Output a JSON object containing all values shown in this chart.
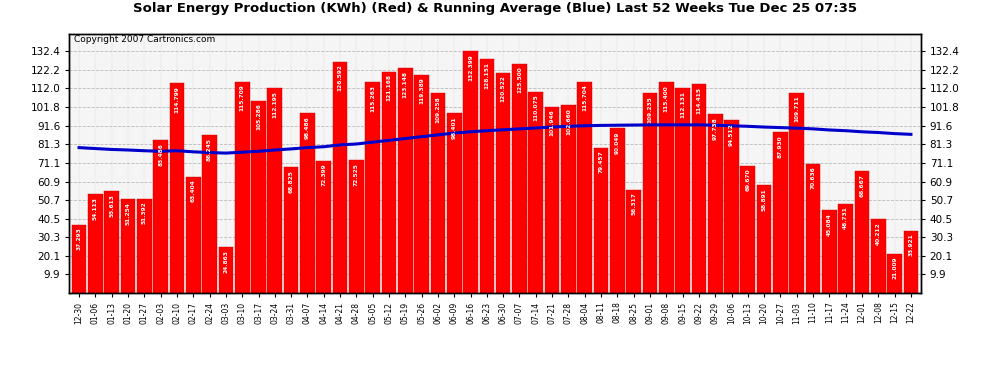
{
  "title": "Solar Energy Production (KWh) (Red) & Running Average (Blue) Last 52 Weeks Tue Dec 25 07:35",
  "copyright": "Copyright 2007 Cartronics.com",
  "bar_color": "#ff0000",
  "avg_color": "#0000cc",
  "background_color": "#ffffff",
  "plot_bg_color": "#ffffff",
  "grid_color": "#bbbbbb",
  "yticks": [
    9.9,
    20.1,
    30.3,
    40.5,
    50.7,
    60.9,
    71.1,
    81.3,
    91.6,
    101.8,
    112.0,
    122.2,
    132.4
  ],
  "categories": [
    "12-30",
    "01-06",
    "01-13",
    "01-20",
    "01-27",
    "02-03",
    "02-10",
    "02-17",
    "02-24",
    "03-03",
    "03-10",
    "03-17",
    "03-24",
    "03-31",
    "04-07",
    "04-14",
    "04-21",
    "04-28",
    "05-05",
    "05-12",
    "05-19",
    "05-26",
    "06-02",
    "06-09",
    "06-16",
    "06-23",
    "06-30",
    "07-07",
    "07-14",
    "07-21",
    "07-28",
    "08-04",
    "08-11",
    "08-18",
    "08-25",
    "09-01",
    "09-08",
    "09-15",
    "09-22",
    "09-29",
    "10-06",
    "10-13",
    "10-20",
    "10-27",
    "11-03",
    "11-10",
    "11-17",
    "11-24",
    "12-01",
    "12-08",
    "12-15",
    "12-22"
  ],
  "values": [
    37.293,
    54.113,
    55.613,
    51.254,
    51.392,
    83.486,
    114.799,
    63.404,
    86.245,
    24.863,
    115.709,
    105.286,
    112.195,
    68.825,
    98.486,
    72.399,
    126.592,
    72.525,
    115.263,
    121.168,
    123.148,
    119.389,
    109.258,
    98.401,
    132.399,
    128.151,
    120.522,
    125.5,
    110.075,
    101.946,
    102.66,
    115.704,
    79.457,
    90.049,
    56.317,
    109.235,
    115.4,
    112.131,
    114.415,
    97.738,
    94.512,
    69.67,
    58.891,
    87.93,
    109.711,
    70.636,
    45.084,
    48.731,
    66.667,
    40.212,
    21.009,
    33.921
  ],
  "running_avg": [
    79.5,
    79.0,
    78.5,
    78.2,
    77.8,
    77.5,
    77.8,
    77.2,
    76.8,
    76.5,
    77.0,
    77.5,
    78.2,
    78.8,
    79.5,
    80.0,
    81.0,
    81.5,
    82.5,
    83.5,
    84.5,
    85.5,
    86.5,
    87.5,
    88.2,
    88.8,
    89.3,
    89.8,
    90.3,
    90.8,
    91.2,
    91.5,
    91.7,
    91.8,
    91.9,
    92.0,
    92.0,
    92.0,
    92.0,
    91.8,
    91.5,
    91.2,
    90.8,
    90.5,
    90.2,
    89.8,
    89.2,
    88.8,
    88.2,
    87.8,
    87.2,
    86.8
  ]
}
